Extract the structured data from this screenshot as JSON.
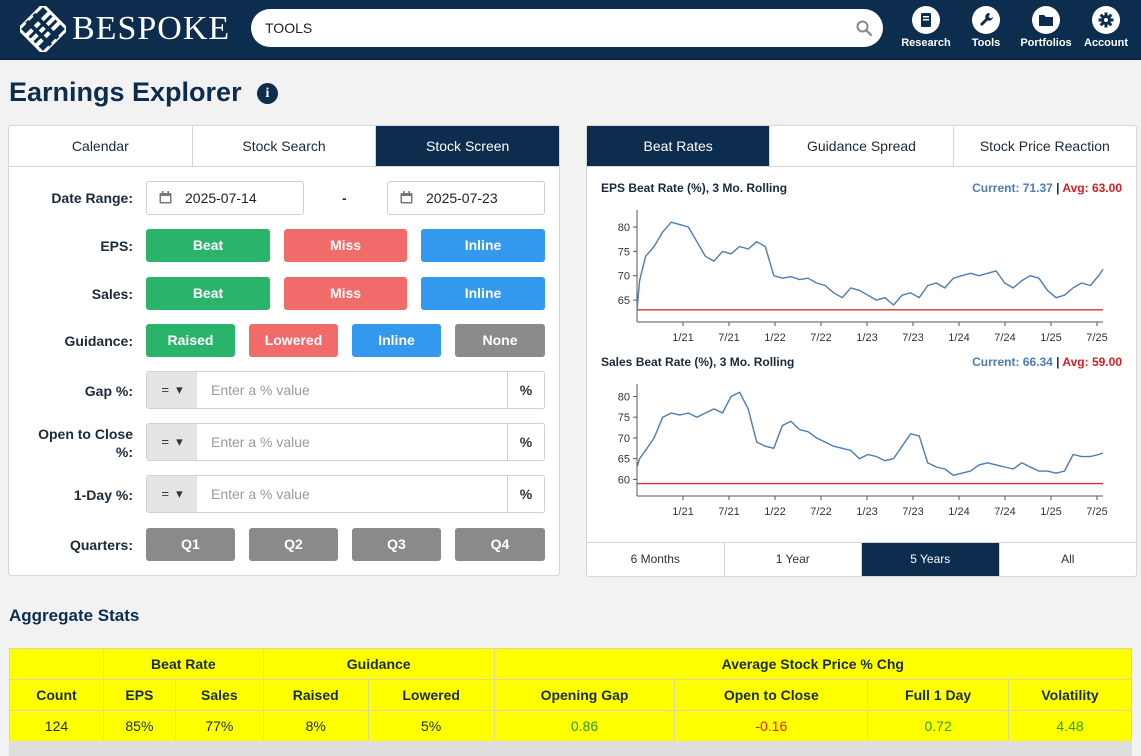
{
  "header": {
    "logo_text": "BESPOKE",
    "search_value": "TOOLS",
    "nav": [
      {
        "label": "Research",
        "icon": "book-icon"
      },
      {
        "label": "Tools",
        "icon": "wrench-icon"
      },
      {
        "label": "Portfolios",
        "icon": "folder-icon"
      },
      {
        "label": "Account",
        "icon": "gear-icon"
      }
    ]
  },
  "page": {
    "title": "Earnings Explorer"
  },
  "left": {
    "tabs": [
      "Calendar",
      "Stock Search",
      "Stock Screen"
    ],
    "date_label": "Date Range:",
    "date_from": "2025-07-14",
    "date_sep": "-",
    "date_to": "2025-07-23",
    "eps_label": "EPS:",
    "eps_buttons": [
      "Beat",
      "Miss",
      "Inline"
    ],
    "sales_label": "Sales:",
    "sales_buttons": [
      "Beat",
      "Miss",
      "Inline"
    ],
    "guidance_label": "Guidance:",
    "guidance_buttons": [
      "Raised",
      "Lowered",
      "Inline",
      "None"
    ],
    "gap_label": "Gap %:",
    "otc_label_1": "Open to Close",
    "otc_label_2": "%:",
    "oneday_label": "1-Day %:",
    "operator": "=",
    "placeholder": "Enter a % value",
    "unit": "%",
    "quarters_label": "Quarters:",
    "quarters": [
      "Q1",
      "Q2",
      "Q3",
      "Q4"
    ]
  },
  "right": {
    "tabs": [
      "Beat Rates",
      "Guidance Spread",
      "Stock Price Reaction"
    ],
    "ranges": [
      "6 Months",
      "1 Year",
      "5 Years",
      "All"
    ],
    "colors": {
      "line": "#4a7db5",
      "avg": "#e03030"
    }
  },
  "chart_data": [
    {
      "type": "line",
      "title": "EPS Beat Rate (%), 3 Mo. Rolling",
      "current_label": "Current: 71.37",
      "avg_label": "Avg: 63.00",
      "current": 71.37,
      "avg": 63.0,
      "ylim": [
        60.5,
        83.5
      ],
      "yticks": [
        65,
        70,
        75,
        80
      ],
      "xticks": [
        "1/21",
        "7/21",
        "1/22",
        "7/22",
        "1/23",
        "7/23",
        "1/24",
        "7/24",
        "1/25",
        "7/25"
      ],
      "x": [
        0,
        0.3,
        1,
        2,
        3,
        4,
        5,
        6,
        7,
        8,
        9,
        10,
        11,
        12,
        13,
        14,
        15,
        16,
        17,
        18,
        19,
        20,
        21,
        22,
        23,
        24,
        25,
        26,
        27,
        28,
        29,
        30,
        31,
        32,
        33,
        34,
        35,
        36,
        37,
        38,
        39,
        40,
        41,
        42,
        43,
        44,
        45,
        46,
        47,
        48,
        49,
        50,
        51,
        52,
        53,
        54,
        54.5
      ],
      "values": [
        63,
        69,
        74,
        76,
        79,
        81,
        80.5,
        80,
        77,
        74,
        73,
        75,
        74.5,
        76,
        75.5,
        77,
        76,
        70,
        69.5,
        69.8,
        69.2,
        69.5,
        68.5,
        68,
        66.5,
        65.5,
        67.5,
        67,
        66,
        65,
        65.5,
        64,
        66,
        66.5,
        65.5,
        68,
        68.5,
        67.5,
        69.5,
        70,
        70.5,
        70,
        70.5,
        71,
        68.5,
        67.5,
        69,
        70,
        69.5,
        67,
        65.5,
        66,
        67.5,
        68.5,
        68,
        70,
        71.37
      ]
    },
    {
      "type": "line",
      "title": "Sales Beat Rate (%), 3 Mo. Rolling",
      "current_label": "Current: 66.34",
      "avg_label": "Avg: 59.00",
      "current": 66.34,
      "avg": 59.0,
      "ylim": [
        56,
        83
      ],
      "yticks": [
        60,
        65,
        70,
        75,
        80
      ],
      "xticks": [
        "1/21",
        "7/21",
        "1/22",
        "7/22",
        "1/23",
        "7/23",
        "1/24",
        "7/24",
        "1/25",
        "7/25"
      ],
      "x": [
        0,
        0.3,
        1,
        2,
        3,
        4,
        5,
        6,
        7,
        8,
        9,
        10,
        11,
        12,
        13,
        14,
        15,
        16,
        17,
        18,
        19,
        20,
        21,
        22,
        23,
        24,
        25,
        26,
        27,
        28,
        29,
        30,
        31,
        32,
        33,
        34,
        35,
        36,
        37,
        38,
        39,
        40,
        41,
        42,
        43,
        44,
        45,
        46,
        47,
        48,
        49,
        50,
        51,
        52,
        53,
        54,
        54.5
      ],
      "values": [
        63,
        65,
        67,
        70,
        75,
        76,
        75.5,
        76,
        75,
        76,
        77,
        76,
        80,
        81,
        77,
        69,
        68,
        67.5,
        73,
        74,
        72,
        71.5,
        70,
        69,
        68,
        67.5,
        67,
        65,
        66,
        65.5,
        64.5,
        65,
        68,
        71,
        70.5,
        64,
        63,
        62.5,
        61,
        61.5,
        62,
        63.5,
        64,
        63.5,
        63,
        62.5,
        64,
        63,
        62,
        62,
        61.5,
        62,
        66,
        65.5,
        65.5,
        66,
        66.34
      ]
    }
  ],
  "aggregate": {
    "title": "Aggregate Stats",
    "group_headers": [
      "Beat Rate",
      "Guidance",
      "Average Stock Price % Chg"
    ],
    "columns": [
      "Count",
      "EPS",
      "Sales",
      "Raised",
      "Lowered",
      "Opening Gap",
      "Open to Close",
      "Full 1 Day",
      "Volatility"
    ],
    "values": [
      "124",
      "85%",
      "77%",
      "8%",
      "5%",
      "0.86",
      "-0.16",
      "0.72",
      "4.48"
    ]
  }
}
